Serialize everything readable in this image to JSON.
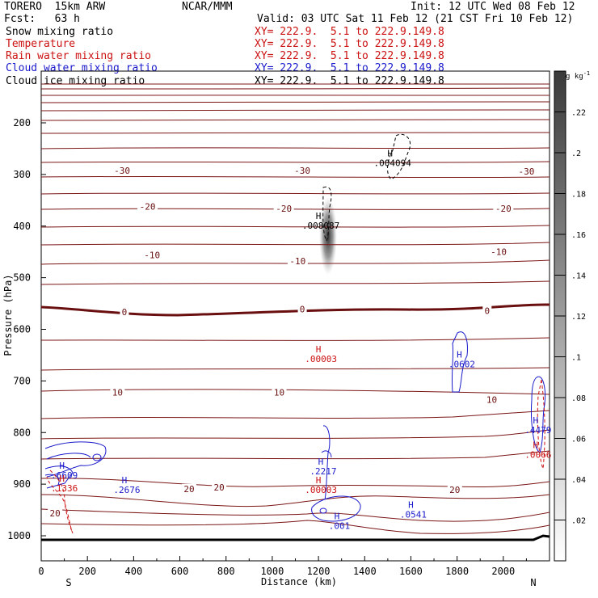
{
  "header": {
    "model": "TORERO  15km ARW",
    "center": "NCAR/MMM",
    "init": "Init: 12 UTC Wed 08 Feb 12",
    "fcst": "Fcst:   63 h",
    "valid": "Valid: 03 UTC Sat 11 Feb 12 (21 CST Fri 10 Feb 12)"
  },
  "fields": [
    {
      "name": "Snow mixing ratio",
      "xy": "",
      "color": "#000000"
    },
    {
      "name": "Temperature",
      "xy": "XY= 222.9.  5.1 to 222.9.149.8",
      "color": "#cc1111"
    },
    {
      "name": "Rain water mixing ratio",
      "xy": "XY= 222.9.  5.1 to 222.9.149.8",
      "color": "#cc1111"
    },
    {
      "name": "Cloud water mixing ratio",
      "xy": "XY= 222.9.  5.1 to 222.9.149.8",
      "color": "#1a1acc"
    },
    {
      "name": "Cloud ice mixing ratio",
      "xy": "XY= 222.9.  5.1 to 222.9.149.8",
      "color": "#000000"
    }
  ],
  "first_xy": "XY= 222.9.  5.1 to 222.9.149.8",
  "chart_data": {
    "type": "cross-section",
    "xlabel": "Distance (km)",
    "ylabel": "Pressure (hPa)",
    "xlim": [
      0,
      2200
    ],
    "ylim": [
      1050,
      100
    ],
    "xticks": [
      0,
      200,
      400,
      600,
      800,
      1000,
      1200,
      1400,
      1600,
      1800,
      2000
    ],
    "yticks": [
      200,
      300,
      400,
      500,
      600,
      700,
      800,
      900,
      1000
    ],
    "left_end": "S",
    "right_end": "N",
    "colorbar": {
      "unit": "g kg",
      "exp": "-1",
      "ticks": [
        ".02",
        ".04",
        ".06",
        ".08",
        ".1",
        ".12",
        ".14",
        ".16",
        ".18",
        ".2",
        ".22"
      ],
      "values": [
        0.02,
        0.04,
        0.06,
        0.08,
        0.1,
        0.12,
        0.14,
        0.16,
        0.18,
        0.2,
        0.22
      ],
      "max": 0.24
    },
    "temperature_contour_labels": [
      {
        "text": "-30",
        "x": 350,
        "p": 292
      },
      {
        "text": "-30",
        "x": 1130,
        "p": 292
      },
      {
        "text": "-30",
        "x": 2100,
        "p": 294
      },
      {
        "text": "-20",
        "x": 460,
        "p": 362
      },
      {
        "text": "-20",
        "x": 1050,
        "p": 366
      },
      {
        "text": "-20",
        "x": 2000,
        "p": 366
      },
      {
        "text": "-10",
        "x": 480,
        "p": 456
      },
      {
        "text": "-10",
        "x": 1110,
        "p": 468
      },
      {
        "text": "-10",
        "x": 1980,
        "p": 450
      },
      {
        "text": "0",
        "x": 360,
        "p": 566
      },
      {
        "text": "0",
        "x": 1130,
        "p": 561
      },
      {
        "text": "0",
        "x": 1930,
        "p": 564
      },
      {
        "text": "10",
        "x": 330,
        "p": 722
      },
      {
        "text": "10",
        "x": 1030,
        "p": 722
      },
      {
        "text": "10",
        "x": 1950,
        "p": 736
      },
      {
        "text": "20",
        "x": 640,
        "p": 909
      },
      {
        "text": "20",
        "x": 770,
        "p": 906
      },
      {
        "text": "20",
        "x": 1790,
        "p": 911
      },
      {
        "text": "20",
        "x": 60,
        "p": 956
      }
    ],
    "maxima": [
      {
        "field": "Snow mixing ratio",
        "mark": "H",
        "value": ".004094",
        "x": 1510,
        "p": 265
      },
      {
        "field": "Snow mixing ratio",
        "mark": "H",
        "value": ".008087",
        "x": 1200,
        "p": 386
      },
      {
        "field": "Rain water mixing ratio",
        "mark": "H",
        "value": ".00003",
        "x": 1200,
        "p": 645
      },
      {
        "field": "Cloud water mixing ratio",
        "mark": "H",
        "value": ".0602",
        "x": 1810,
        "p": 655
      },
      {
        "field": "Cloud water mixing ratio",
        "mark": "H",
        "value": ".4479",
        "x": 2140,
        "p": 782
      },
      {
        "field": "Rain water mixing ratio",
        "mark": "H",
        "value": ".0066",
        "x": 2140,
        "p": 830
      },
      {
        "field": "Cloud water mixing ratio",
        "mark": "H",
        "value": ".6609",
        "x": 90,
        "p": 870
      },
      {
        "field": "Rain water mixing ratio",
        "mark": "H",
        "value": ".1336",
        "x": 90,
        "p": 895
      },
      {
        "field": "Cloud water mixing ratio",
        "mark": "H",
        "value": ".2676",
        "x": 360,
        "p": 898
      },
      {
        "field": "Cloud water mixing ratio",
        "mark": "H",
        "value": ".2217",
        "x": 1210,
        "p": 862
      },
      {
        "field": "Rain water mixing ratio",
        "mark": "H",
        "value": ".00003",
        "x": 1200,
        "p": 898
      },
      {
        "field": "Cloud water mixing ratio",
        "mark": "H",
        "value": ".001",
        "x": 1280,
        "p": 968
      },
      {
        "field": "Cloud water mixing ratio",
        "mark": "H",
        "value": ".0541",
        "x": 1600,
        "p": 946
      }
    ]
  }
}
